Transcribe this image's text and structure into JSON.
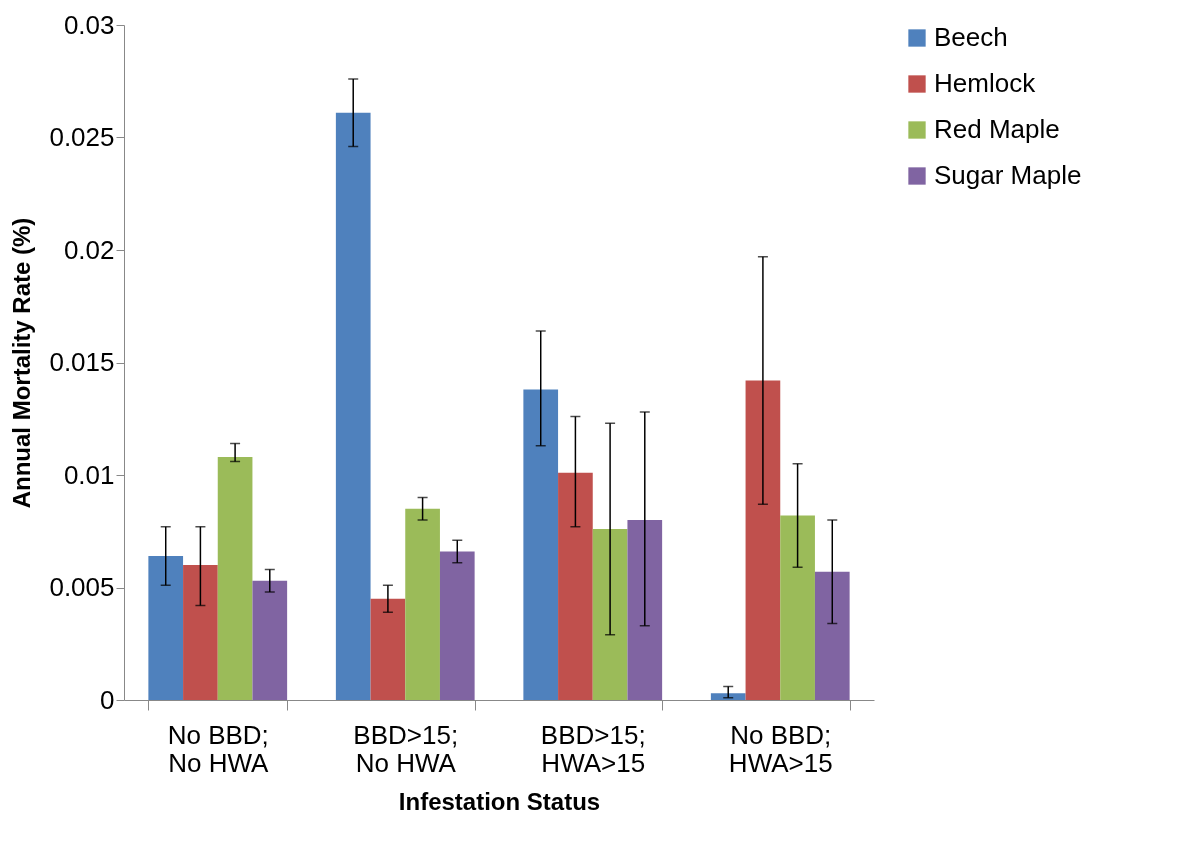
{
  "chart_data": {
    "type": "bar",
    "xlabel": "Infestation Status",
    "ylabel": "Annual Mortality Rate (%)",
    "categories": [
      "No BBD; No HWA",
      "BBD>15; No HWA",
      "BBD>15; HWA>15",
      "No BBD; HWA>15"
    ],
    "series": [
      {
        "name": "Beech",
        "color": "#4f81bd",
        "values": [
          0.0064,
          0.0261,
          0.0138,
          0.0003
        ],
        "errors": [
          [
            0.0051,
            0.0077
          ],
          [
            0.0246,
            0.0276
          ],
          [
            0.0113,
            0.0164
          ],
          [
            0.0001,
            0.0006
          ]
        ]
      },
      {
        "name": "Hemlock",
        "color": "#c0504d",
        "values": [
          0.006,
          0.0045,
          0.0101,
          0.0142
        ],
        "errors": [
          [
            0.0042,
            0.0077
          ],
          [
            0.0039,
            0.0051
          ],
          [
            0.0077,
            0.0126
          ],
          [
            0.0087,
            0.0197
          ]
        ]
      },
      {
        "name": "Red Maple",
        "color": "#9bbb59",
        "values": [
          0.0108,
          0.0085,
          0.0076,
          0.0082
        ],
        "errors": [
          [
            0.0106,
            0.0114
          ],
          [
            0.008,
            0.009
          ],
          [
            0.0029,
            0.0123
          ],
          [
            0.0059,
            0.0105
          ]
        ]
      },
      {
        "name": "Sugar Maple",
        "color": "#8064a2",
        "values": [
          0.0053,
          0.0066,
          0.008,
          0.0057
        ],
        "errors": [
          [
            0.0048,
            0.0058
          ],
          [
            0.0061,
            0.0071
          ],
          [
            0.0033,
            0.0128
          ],
          [
            0.0034,
            0.008
          ]
        ]
      }
    ],
    "ylim": [
      0,
      0.03
    ],
    "yticks": [
      0,
      0.005,
      0.01,
      0.015,
      0.02,
      0.025,
      0.03
    ],
    "grid": false,
    "legend": "right"
  }
}
